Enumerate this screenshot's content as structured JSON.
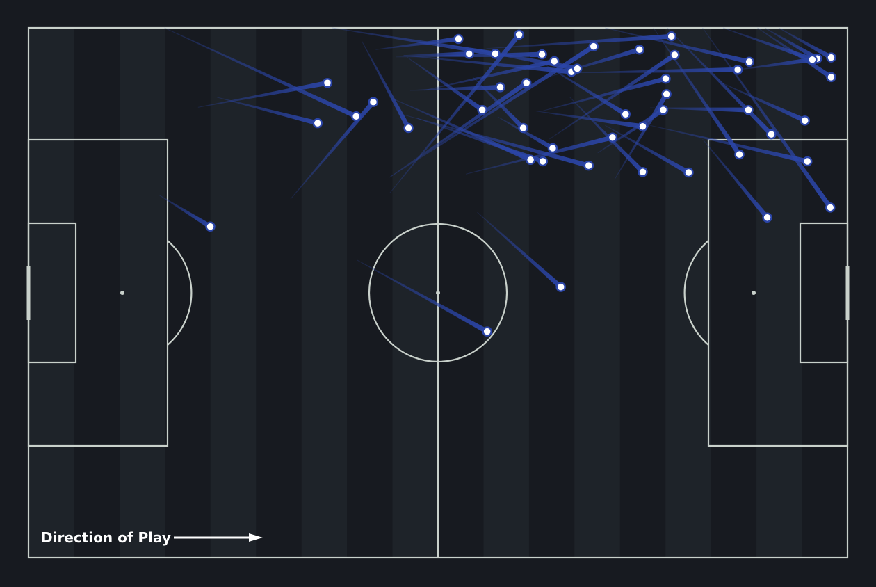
{
  "chart_data": {
    "type": "pass-map",
    "coordinate_system": "pitch 0-100 length (left to right) x 0-100 width (top to bottom)",
    "xlim": [
      0,
      100
    ],
    "ylim": [
      0,
      100
    ],
    "grid": false,
    "colors": {
      "background": "#171a20",
      "stripe_light": "#1e2329",
      "pitch_lines": "#c9d1cb",
      "pass": "#2b45a8",
      "end_marker_fill": "#ffffff",
      "end_marker_stroke": "#2b45a8"
    },
    "direction_label": "Direction of Play",
    "passes": [
      {
        "x1": 15.9,
        "y1": 31.5,
        "x2": 22.2,
        "y2": 37.5
      },
      {
        "x1": 40.1,
        "y1": 43.8,
        "x2": 56.0,
        "y2": 57.3
      },
      {
        "x1": 54.8,
        "y1": 34.8,
        "x2": 65.0,
        "y2": 48.9
      },
      {
        "x1": 20.7,
        "y1": 15.0,
        "x2": 36.5,
        "y2": 10.4
      },
      {
        "x1": 23.0,
        "y1": 13.1,
        "x2": 35.3,
        "y2": 18.0
      },
      {
        "x1": 16.6,
        "y1": 0.0,
        "x2": 40.0,
        "y2": 16.7
      },
      {
        "x1": 32.0,
        "y1": 32.3,
        "x2": 42.1,
        "y2": 14.0
      },
      {
        "x1": 40.7,
        "y1": 2.5,
        "x2": 46.4,
        "y2": 18.9
      },
      {
        "x1": 42.4,
        "y1": 4.1,
        "x2": 52.5,
        "y2": 2.1
      },
      {
        "x1": 45.8,
        "y1": 5.2,
        "x2": 53.8,
        "y2": 4.9
      },
      {
        "x1": 37.1,
        "y1": 0.0,
        "x2": 57.0,
        "y2": 4.9
      },
      {
        "x1": 44.1,
        "y1": 31.2,
        "x2": 59.9,
        "y2": 1.3
      },
      {
        "x1": 44.9,
        "y1": 5.5,
        "x2": 62.7,
        "y2": 5.0
      },
      {
        "x1": 48.3,
        "y1": 11.8,
        "x2": 64.2,
        "y2": 6.3
      },
      {
        "x1": 45.8,
        "y1": 5.2,
        "x2": 66.3,
        "y2": 8.3
      },
      {
        "x1": 49.2,
        "y1": 2.6,
        "x2": 67.0,
        "y2": 7.7
      },
      {
        "x1": 44.1,
        "y1": 28.2,
        "x2": 69.0,
        "y2": 3.5
      },
      {
        "x1": 46.6,
        "y1": 11.8,
        "x2": 57.6,
        "y2": 11.2
      },
      {
        "x1": 44.1,
        "y1": 28.2,
        "x2": 60.8,
        "y2": 10.4
      },
      {
        "x1": 46.2,
        "y1": 5.5,
        "x2": 55.4,
        "y2": 15.5
      },
      {
        "x1": 54.2,
        "y1": 9.2,
        "x2": 60.4,
        "y2": 18.9
      },
      {
        "x1": 44.1,
        "y1": 13.1,
        "x2": 61.3,
        "y2": 24.9
      },
      {
        "x1": 47.5,
        "y1": 17.1,
        "x2": 62.8,
        "y2": 25.2
      },
      {
        "x1": 57.3,
        "y1": 16.8,
        "x2": 64.0,
        "y2": 22.7
      },
      {
        "x1": 45.8,
        "y1": 16.4,
        "x2": 68.4,
        "y2": 26.0
      },
      {
        "x1": 53.4,
        "y1": 27.6,
        "x2": 71.3,
        "y2": 20.7
      },
      {
        "x1": 62.7,
        "y1": 6.6,
        "x2": 72.9,
        "y2": 16.3
      },
      {
        "x1": 61.9,
        "y1": 15.7,
        "x2": 75.0,
        "y2": 18.6
      },
      {
        "x1": 66.1,
        "y1": 13.1,
        "x2": 75.0,
        "y2": 27.2
      },
      {
        "x1": 69.5,
        "y1": 23.6,
        "x2": 77.5,
        "y2": 15.5
      },
      {
        "x1": 71.6,
        "y1": 28.5,
        "x2": 77.9,
        "y2": 12.5
      },
      {
        "x1": 62.7,
        "y1": 15.7,
        "x2": 77.8,
        "y2": 9.6
      },
      {
        "x1": 55.9,
        "y1": 3.9,
        "x2": 78.5,
        "y2": 1.6
      },
      {
        "x1": 63.6,
        "y1": 21.0,
        "x2": 78.9,
        "y2": 5.1
      },
      {
        "x1": 70.4,
        "y1": 18.4,
        "x2": 80.6,
        "y2": 27.3
      },
      {
        "x1": 63.6,
        "y1": 9.2,
        "x2": 74.6,
        "y2": 4.1
      },
      {
        "x1": 66.1,
        "y1": 8.5,
        "x2": 86.6,
        "y2": 7.9
      },
      {
        "x1": 70.4,
        "y1": 0.0,
        "x2": 88.0,
        "y2": 6.4
      },
      {
        "x1": 75.9,
        "y1": 15.1,
        "x2": 87.9,
        "y2": 15.5
      },
      {
        "x1": 76.3,
        "y1": 0.0,
        "x2": 86.8,
        "y2": 23.9
      },
      {
        "x1": 78.0,
        "y1": 0.0,
        "x2": 90.7,
        "y2": 20.1
      },
      {
        "x1": 82.3,
        "y1": 21.0,
        "x2": 90.2,
        "y2": 35.8
      },
      {
        "x1": 84.8,
        "y1": 10.5,
        "x2": 94.8,
        "y2": 17.5
      },
      {
        "x1": 75.9,
        "y1": 18.4,
        "x2": 95.1,
        "y2": 25.2
      },
      {
        "x1": 82.3,
        "y1": 0.0,
        "x2": 97.9,
        "y2": 33.9
      },
      {
        "x1": 84.8,
        "y1": 0.0,
        "x2": 95.8,
        "y2": 6.0
      },
      {
        "x1": 89.9,
        "y1": 0.0,
        "x2": 96.3,
        "y2": 5.8
      },
      {
        "x1": 91.6,
        "y1": 0.0,
        "x2": 98.0,
        "y2": 5.6
      },
      {
        "x1": 89.0,
        "y1": 0.0,
        "x2": 98.0,
        "y2": 9.3
      },
      {
        "x1": 86.6,
        "y1": 7.9,
        "x2": 95.7,
        "y2": 6.0
      }
    ]
  }
}
